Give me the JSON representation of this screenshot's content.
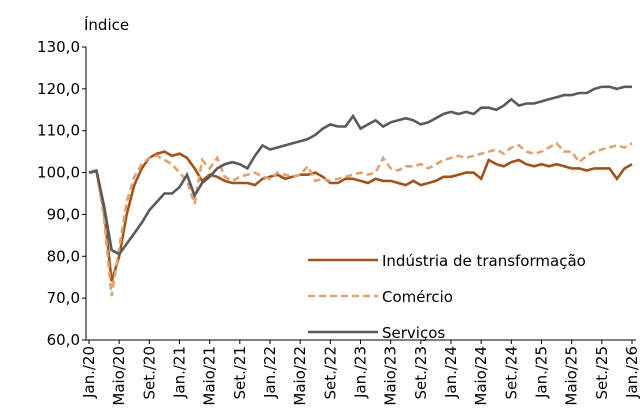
{
  "chart_data": {
    "type": "line",
    "y_label": "Índice",
    "categories": [
      "Jan./20",
      null,
      null,
      null,
      "Maio/20",
      null,
      null,
      null,
      "Set./20",
      null,
      null,
      null,
      "Jan./21",
      null,
      null,
      null,
      "Maio/21",
      null,
      null,
      null,
      "Set./21",
      null,
      null,
      null,
      "Jan./22",
      null,
      null,
      null,
      "Maio/22",
      null,
      null,
      null,
      "Set./22",
      null,
      null,
      null,
      "Jan./23",
      null,
      null,
      null,
      "Maio/23",
      null,
      null,
      null,
      "Set./23",
      null,
      null,
      null,
      "Jan./24",
      null,
      null,
      null,
      "Maio/24",
      null,
      null,
      null,
      "Set./24",
      null,
      null,
      null,
      "Jan./25",
      null,
      null,
      null,
      "Maio/25",
      null,
      null,
      null,
      "Set./25",
      null,
      null,
      null,
      "Jan./26"
    ],
    "series": [
      {
        "name": "Indústria de transformação",
        "color": "#a0521a",
        "dash": false,
        "values": [
          100,
          100.3,
          91,
          74,
          80,
          90,
          97,
          101,
          103.5,
          104.5,
          105,
          104,
          104.5,
          103.5,
          101,
          98,
          99.5,
          99,
          98,
          97.5,
          97.5,
          97.5,
          97,
          98.5,
          99,
          99.5,
          98.5,
          99,
          99.5,
          99.5,
          100,
          99,
          97.5,
          97.5,
          98.5,
          98.5,
          98,
          97.5,
          98.5,
          98,
          98,
          97.5,
          97,
          98,
          97,
          97.5,
          98,
          99,
          99,
          99.5,
          100,
          100,
          98.5,
          103,
          102,
          101.5,
          102.5,
          103,
          102,
          101.5,
          102,
          101.5,
          102,
          101.5,
          101,
          101,
          100.5,
          101,
          101,
          101,
          98.5,
          101,
          102
        ]
      },
      {
        "name": "Comércio",
        "color": "#e0a26e",
        "dash": true,
        "values": [
          100,
          100.5,
          89,
          70.5,
          82,
          93,
          99,
          102,
          103.5,
          104,
          103,
          102,
          100,
          98,
          92.5,
          103,
          101,
          103.5,
          99,
          98,
          99,
          99.5,
          100,
          99,
          98.5,
          100,
          99.5,
          99,
          99.5,
          101.5,
          98,
          98.5,
          98,
          98.5,
          99,
          99.5,
          100,
          99.5,
          100,
          103.5,
          101,
          100.5,
          101.5,
          101.5,
          102,
          101,
          102,
          103,
          103.5,
          104,
          103.5,
          104,
          104.5,
          105,
          105.5,
          104.5,
          106,
          106.5,
          105,
          104.5,
          105,
          106,
          107,
          105,
          105,
          102.5,
          104,
          105,
          105.5,
          106,
          106.5,
          106,
          107
        ]
      },
      {
        "name": "Serviços",
        "color": "#5a5a5a",
        "dash": false,
        "values": [
          100,
          100.5,
          92,
          81.5,
          80.5,
          83,
          85.5,
          88,
          91,
          93,
          95,
          95,
          96.5,
          99.5,
          94.5,
          97.5,
          99,
          101,
          102,
          102.5,
          102,
          101,
          104,
          106.5,
          105.5,
          106,
          106.5,
          107,
          107.5,
          108,
          109,
          110.5,
          111.5,
          111,
          111,
          113.5,
          110.5,
          111.5,
          112.5,
          111,
          112,
          112.5,
          113,
          112.5,
          111.5,
          112,
          113,
          114,
          114.5,
          114,
          114.5,
          114,
          115.5,
          115.5,
          115,
          116,
          117.5,
          116,
          116.5,
          116.5,
          117,
          117.5,
          118,
          118.5,
          118.5,
          119,
          119,
          120,
          120.5,
          120.5,
          120,
          120.5,
          120.5
        ]
      }
    ],
    "ylim": [
      60,
      130
    ],
    "yticks": [
      {
        "value": 60,
        "label": "60,0"
      },
      {
        "value": 70,
        "label": "70,0"
      },
      {
        "value": 80,
        "label": "80,0"
      },
      {
        "value": 90,
        "label": "90,0"
      },
      {
        "value": 100,
        "label": "100,0"
      },
      {
        "value": 110,
        "label": "110,0"
      },
      {
        "value": 120,
        "label": "120,0"
      },
      {
        "value": 130,
        "label": "130,0"
      }
    ],
    "grid": false,
    "legend": "lower right"
  }
}
